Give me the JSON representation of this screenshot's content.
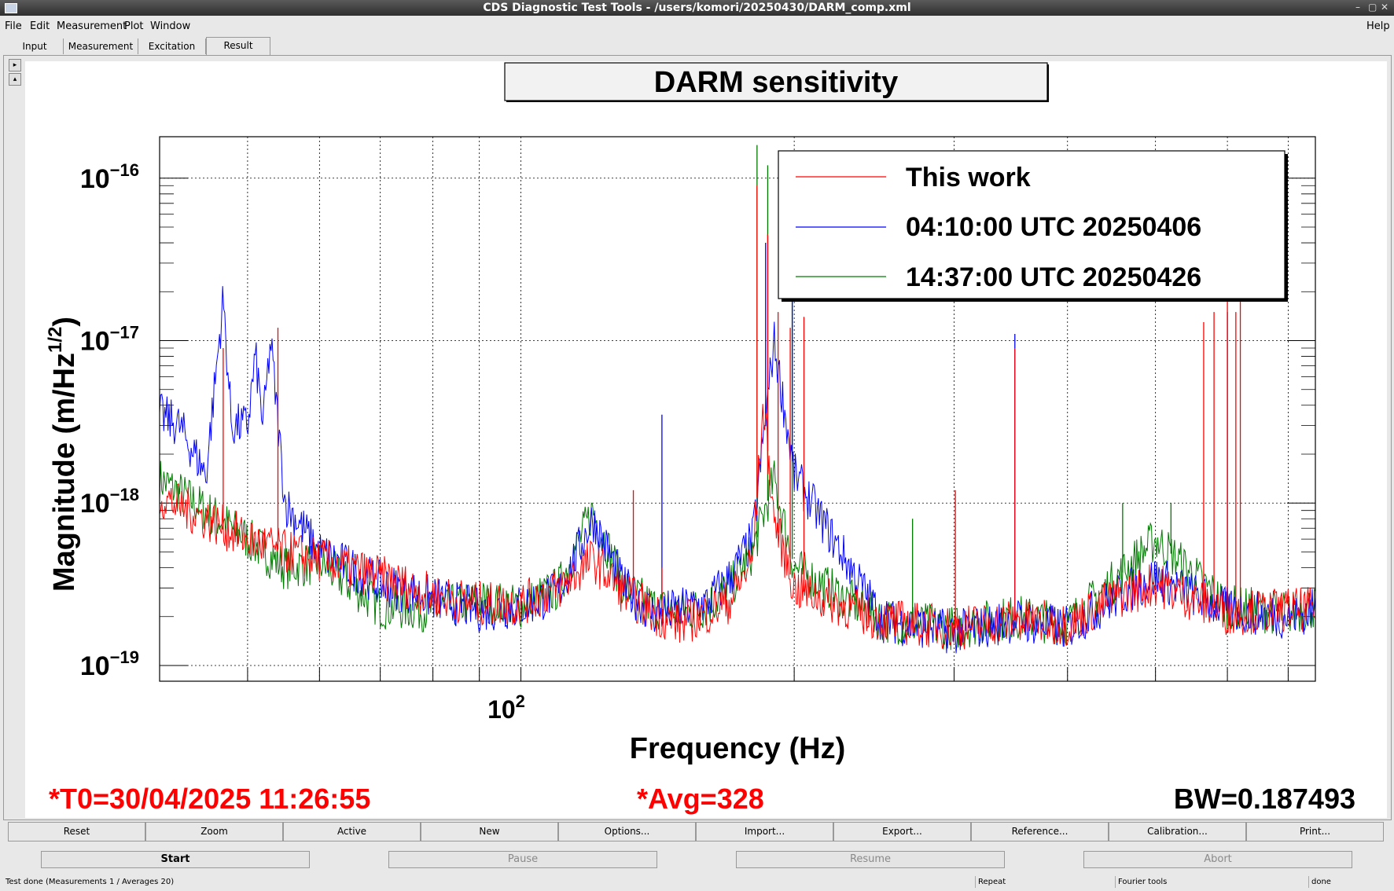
{
  "window": {
    "title": "CDS Diagnostic Test Tools - /users/komori/20250430/DARM_comp.xml",
    "controls": [
      "–",
      "▢",
      "✕"
    ]
  },
  "menubar": {
    "file": "File",
    "edit": "Edit",
    "measurement": "Measurement",
    "plot": "Plot",
    "window": "Window",
    "help": "Help"
  },
  "tabs": {
    "input": "Input",
    "measurement": "Measurement",
    "excitation": "Excitation",
    "result": "Result"
  },
  "icons": {
    "expand_right": "arrow-right-icon",
    "collapse_up": "arrow-up-icon"
  },
  "plot": {
    "title": "DARM sensitivity",
    "xlabel": "Frequency (Hz)",
    "ylabel_main": "Magnitude (m/Hz",
    "ylabel_sup": "1/2",
    "ylabel_end": ")",
    "x_tick_label_base": "10",
    "x_tick_label_exp": "2",
    "y_ticks": [
      {
        "base": "10",
        "exp": "−16",
        "value": 1e-16
      },
      {
        "base": "10",
        "exp": "−17",
        "value": 1e-17
      },
      {
        "base": "10",
        "exp": "−18",
        "value": 1e-18
      },
      {
        "base": "10",
        "exp": "−19",
        "value": 1e-19
      }
    ],
    "t0": "*T0=30/04/2025 11:26:55",
    "avg": "*Avg=328",
    "bw": "BW=0.187493",
    "colors": {
      "red": "#ff0000",
      "blue": "#0000ff",
      "green": "#007a00",
      "annotation": "#ff0000"
    }
  },
  "chart_data": {
    "type": "line",
    "title": "DARM sensitivity",
    "xlabel": "Frequency (Hz)",
    "ylabel": "Magnitude (m/Hz^1/2)",
    "x_scale": "log",
    "y_scale": "log",
    "xlim": [
      40,
      750
    ],
    "ylim": [
      8e-20,
      1.8e-16
    ],
    "grid": true,
    "legend_position": "top-right",
    "series": [
      {
        "name": "This work",
        "color": "#ff0000",
        "x": [
          40,
          45,
          50,
          55,
          60,
          70,
          80,
          90,
          100,
          110,
          120,
          130,
          140,
          150,
          160,
          170,
          180,
          185,
          190,
          200,
          250,
          300,
          350,
          400,
          450,
          500,
          600,
          700,
          750
        ],
        "y": [
          1.1e-18,
          8e-19,
          6e-19,
          5e-19,
          4.5e-19,
          3.5e-19,
          2.7e-19,
          2.4e-19,
          2.4e-19,
          3e-19,
          4.5e-19,
          2.8e-19,
          2.1e-19,
          1.8e-19,
          2.1e-19,
          2.5e-19,
          4.5e-19,
          4e-18,
          8e-19,
          3e-19,
          1.9e-19,
          1.7e-19,
          1.9e-19,
          1.8e-19,
          2.6e-19,
          3.2e-19,
          2.1e-19,
          2.2e-19,
          2.2e-19
        ],
        "peaks": [
          {
            "x": 47,
            "y": 9e-18
          },
          {
            "x": 54,
            "y": 1.2e-17
          },
          {
            "x": 133,
            "y": 1.2e-18
          },
          {
            "x": 143,
            "y": 4e-19
          },
          {
            "x": 182,
            "y": 9e-17
          },
          {
            "x": 187,
            "y": 4.5e-17
          },
          {
            "x": 192,
            "y": 1.5e-17
          },
          {
            "x": 198,
            "y": 1.2e-17
          },
          {
            "x": 205,
            "y": 1.4e-17
          },
          {
            "x": 301,
            "y": 1.2e-18
          },
          {
            "x": 350,
            "y": 9e-18
          },
          {
            "x": 565,
            "y": 1.3e-17
          },
          {
            "x": 580,
            "y": 1.5e-17
          },
          {
            "x": 600,
            "y": 2e-17
          },
          {
            "x": 613,
            "y": 1.5e-17
          },
          {
            "x": 620,
            "y": 2e-17
          }
        ]
      },
      {
        "name": "04:10:00 UTC 20250406",
        "color": "#0000ff",
        "x": [
          40,
          42,
          45,
          47,
          48,
          50,
          51,
          52,
          53,
          55,
          60,
          70,
          80,
          90,
          100,
          110,
          120,
          130,
          140,
          150,
          160,
          170,
          180,
          190,
          200,
          250,
          300,
          350,
          400,
          450,
          500,
          600,
          700,
          750
        ],
        "y": [
          3.5e-18,
          3e-18,
          1.5e-18,
          1.8e-17,
          3e-18,
          3e-18,
          8e-18,
          3e-18,
          1e-17,
          1e-18,
          5e-19,
          3.2e-19,
          2.6e-19,
          2.2e-19,
          2.3e-19,
          2.8e-19,
          8e-19,
          3e-19,
          2.1e-19,
          2.2e-19,
          2.4e-19,
          3.5e-19,
          6e-19,
          1e-17,
          1.5e-18,
          1.9e-19,
          1.6e-19,
          1.9e-19,
          1.7e-19,
          2.6e-19,
          3.5e-19,
          2.2e-19,
          2e-19,
          2.2e-19
        ],
        "peaks": [
          {
            "x": 143,
            "y": 3.5e-18
          },
          {
            "x": 186,
            "y": 4e-17
          },
          {
            "x": 199,
            "y": 5e-17
          },
          {
            "x": 350,
            "y": 1.1e-17
          },
          {
            "x": 600,
            "y": 1.5e-17
          }
        ]
      },
      {
        "name": "14:37:00 UTC 20250426",
        "color": "#007a00",
        "x": [
          40,
          45,
          50,
          55,
          60,
          70,
          80,
          90,
          100,
          110,
          120,
          130,
          140,
          150,
          160,
          170,
          180,
          190,
          200,
          250,
          300,
          350,
          400,
          450,
          500,
          600,
          700,
          750
        ],
        "y": [
          1.4e-18,
          9e-19,
          6e-19,
          4e-19,
          4.3e-19,
          2.3e-19,
          2.2e-19,
          2.5e-19,
          2.3e-19,
          3e-19,
          9e-19,
          3e-19,
          2.3e-19,
          2.1e-19,
          2.3e-19,
          3e-19,
          5e-19,
          1.4e-18,
          4e-19,
          1.9e-19,
          1.7e-19,
          2e-19,
          1.8e-19,
          3.3e-19,
          6e-19,
          2.3e-19,
          2.1e-19,
          2.3e-19
        ],
        "peaks": [
          {
            "x": 182,
            "y": 1.6e-16
          },
          {
            "x": 187,
            "y": 1.2e-16
          },
          {
            "x": 199,
            "y": 1.2e-16
          },
          {
            "x": 270,
            "y": 8e-19
          },
          {
            "x": 460,
            "y": 1e-18
          },
          {
            "x": 520,
            "y": 1e-18
          }
        ]
      }
    ]
  },
  "controls": [
    "Reset",
    "Zoom",
    "Active",
    "New",
    "Options...",
    "Import...",
    "Export...",
    "Reference...",
    "Calibration...",
    "Print..."
  ],
  "actions": {
    "start": "Start",
    "pause": "Pause",
    "resume": "Resume",
    "abort": "Abort"
  },
  "status": {
    "message": "Test done (Measurements 1 / Averages 20)",
    "repeat": "Repeat",
    "tool": "Fourier tools",
    "state": "done"
  }
}
